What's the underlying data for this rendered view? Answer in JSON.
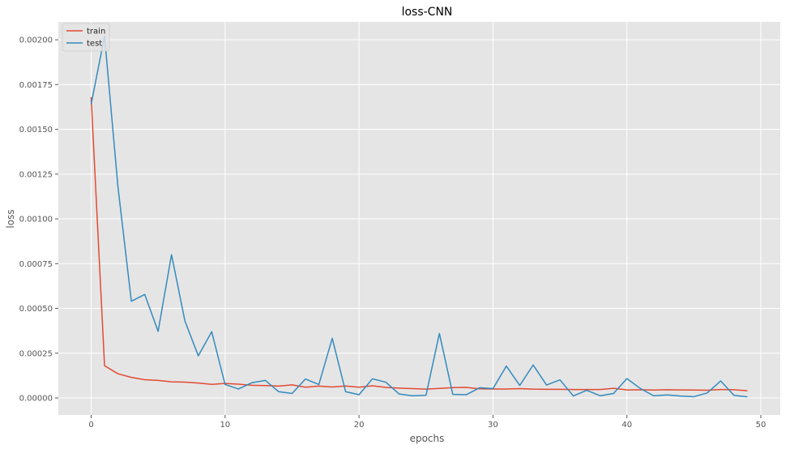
{
  "chart_data": {
    "type": "line",
    "title": "loss-CNN",
    "xlabel": "epochs",
    "ylabel": "loss",
    "xlim": [
      -2.45,
      51.45
    ],
    "ylim": [
      -9.5e-05,
      0.0021
    ],
    "xticks": [
      0,
      10,
      20,
      30,
      40,
      50
    ],
    "yticks": [
      0,
      0.00025,
      0.0005,
      0.00075,
      0.001,
      0.00125,
      0.0015,
      0.00175,
      0.002
    ],
    "ytick_labels": [
      "0.00000",
      "0.00025",
      "0.00050",
      "0.00075",
      "0.00100",
      "0.00125",
      "0.00150",
      "0.00175",
      "0.00200"
    ],
    "grid": true,
    "legend_position": "top-left",
    "background": "#e5e5e5",
    "x": [
      0,
      1,
      2,
      3,
      4,
      5,
      6,
      7,
      8,
      9,
      10,
      11,
      12,
      13,
      14,
      15,
      16,
      17,
      18,
      19,
      20,
      21,
      22,
      23,
      24,
      25,
      26,
      27,
      28,
      29,
      30,
      31,
      32,
      33,
      34,
      35,
      36,
      37,
      38,
      39,
      40,
      41,
      42,
      43,
      44,
      45,
      46,
      47,
      48,
      49
    ],
    "series": [
      {
        "name": "train",
        "color": "#e24a33",
        "values": [
          0.00168,
          0.00018,
          0.000135,
          0.000115,
          0.000102,
          9.8e-05,
          9e-05,
          8.8e-05,
          8.3e-05,
          7.6e-05,
          8.1e-05,
          7.7e-05,
          7.1e-05,
          6.9e-05,
          6.6e-05,
          7.3e-05,
          6e-05,
          6.6e-05,
          6.1e-05,
          6.7e-05,
          6e-05,
          6.8e-05,
          5.9e-05,
          5.5e-05,
          5.2e-05,
          4.9e-05,
          5.3e-05,
          5.8e-05,
          5.9e-05,
          5.1e-05,
          5e-05,
          5e-05,
          5.2e-05,
          4.9e-05,
          4.8e-05,
          4.8e-05,
          4.7e-05,
          4.7e-05,
          4.7e-05,
          5.4e-05,
          4.5e-05,
          4.6e-05,
          4.4e-05,
          4.6e-05,
          4.5e-05,
          4.4e-05,
          4.3e-05,
          4.7e-05,
          4.6e-05,
          4e-05
        ]
      },
      {
        "name": "test",
        "color": "#348abd",
        "values": [
          0.00164,
          0.00202,
          0.00118,
          0.00054,
          0.000578,
          0.000372,
          0.0008,
          0.00043,
          0.000235,
          0.00037,
          7.5e-05,
          5e-05,
          8.5e-05,
          9.8e-05,
          3.5e-05,
          2.5e-05,
          0.000106,
          7.5e-05,
          0.000333,
          3.5e-05,
          1.8e-05,
          0.000107,
          8.8e-05,
          2.2e-05,
          1.2e-05,
          1.5e-05,
          0.00036,
          2e-05,
          1.8e-05,
          5.7e-05,
          5.2e-05,
          0.000178,
          7e-05,
          0.000184,
          7.2e-05,
          0.000101,
          1.1e-05,
          4.3e-05,
          1.2e-05,
          2.5e-05,
          0.000108,
          5.3e-05,
          1.2e-05,
          1.7e-05,
          1.1e-05,
          7e-06,
          2.8e-05,
          9.5e-05,
          1.4e-05,
          6e-06
        ]
      }
    ]
  }
}
